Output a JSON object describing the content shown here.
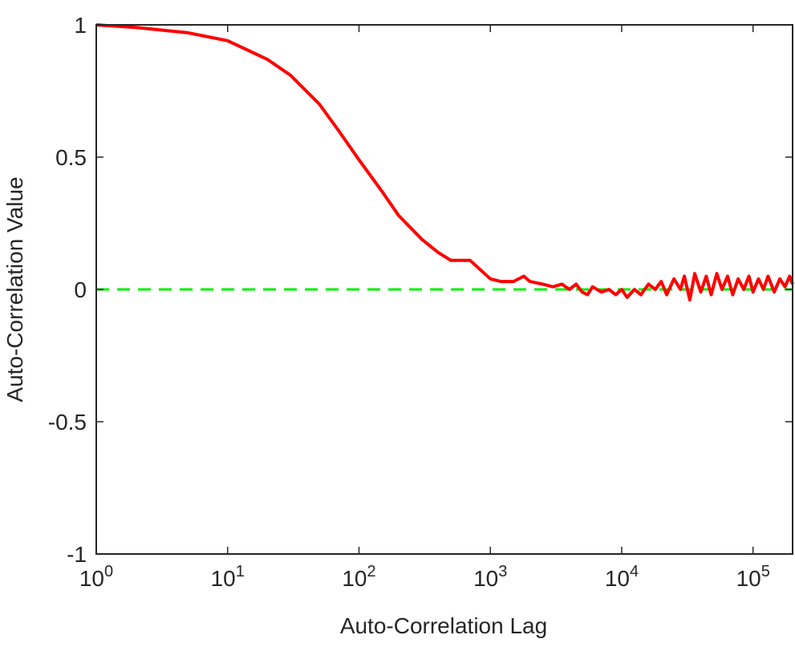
{
  "chart_data": {
    "type": "line",
    "xlabel": "Auto-Correlation Lag",
    "ylabel": "Auto-Correlation Value",
    "xscale": "log",
    "xlim": [
      1,
      200000
    ],
    "ylim": [
      -1,
      1
    ],
    "xticks": [
      {
        "value": 1,
        "label": "10^0"
      },
      {
        "value": 10,
        "label": "10^1"
      },
      {
        "value": 100,
        "label": "10^2"
      },
      {
        "value": 1000,
        "label": "10^3"
      },
      {
        "value": 10000,
        "label": "10^4"
      },
      {
        "value": 100000,
        "label": "10^5"
      }
    ],
    "yticks": [
      -1,
      -0.5,
      0,
      0.5,
      1
    ],
    "series": [
      {
        "color": "#00ee00",
        "style": "dashed",
        "x": [
          1,
          200000
        ],
        "values": [
          0,
          0
        ]
      },
      {
        "color": "#ff0000",
        "style": "solid",
        "x": [
          1,
          2,
          5,
          10,
          20,
          30,
          50,
          70,
          100,
          150,
          200,
          300,
          400,
          500,
          700,
          1000,
          1200,
          1500,
          1800,
          2000,
          2500,
          3000,
          3500,
          4000,
          4500,
          5000,
          5500,
          6000,
          7000,
          8000,
          9000,
          10000,
          11000,
          12500,
          14000,
          16000,
          18000,
          20000,
          22000,
          25000,
          28000,
          30000,
          33000,
          36000,
          40000,
          44000,
          48000,
          53000,
          58000,
          64000,
          70000,
          77000,
          85000,
          93000,
          100000,
          110000,
          120000,
          130000,
          145000,
          160000,
          175000,
          190000,
          200000
        ],
        "values": [
          1,
          0.99,
          0.97,
          0.94,
          0.87,
          0.81,
          0.7,
          0.6,
          0.49,
          0.37,
          0.28,
          0.19,
          0.14,
          0.11,
          0.11,
          0.04,
          0.03,
          0.03,
          0.05,
          0.03,
          0.02,
          0.01,
          0.02,
          0.0,
          0.02,
          -0.01,
          -0.02,
          0.01,
          -0.01,
          0.0,
          -0.02,
          0.0,
          -0.03,
          0.0,
          -0.02,
          0.02,
          0.0,
          0.03,
          -0.02,
          0.04,
          0.0,
          0.05,
          -0.04,
          0.06,
          -0.01,
          0.05,
          -0.02,
          0.06,
          0.0,
          0.05,
          -0.02,
          0.04,
          0.0,
          0.05,
          -0.01,
          0.04,
          0.0,
          0.05,
          -0.01,
          0.04,
          0.01,
          0.05,
          0.02
        ]
      }
    ]
  }
}
